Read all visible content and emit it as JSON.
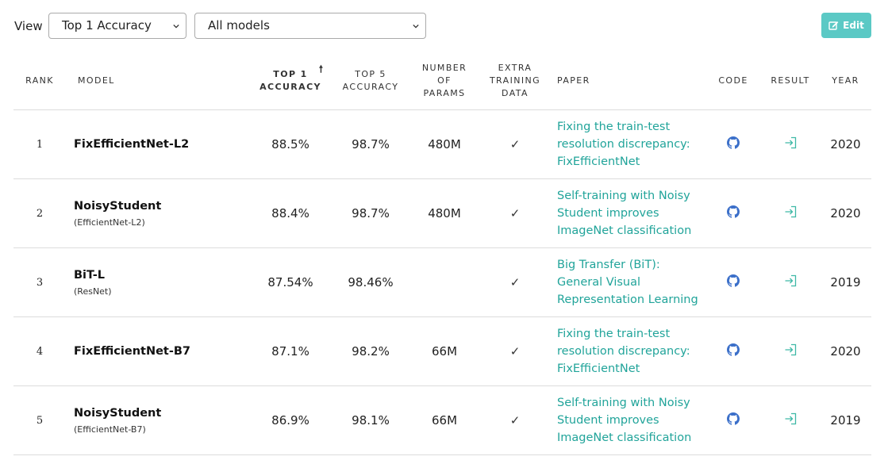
{
  "toolbar": {
    "view_label": "View",
    "metric_select": "Top 1 Accuracy",
    "models_select": "All models",
    "edit_label": "Edit",
    "accent": "#5bc9c5"
  },
  "columns": {
    "rank": "Rank",
    "model": "Model",
    "top1": "Top 1 Accuracy",
    "top5": "Top 5 Accuracy",
    "params": "Number of params",
    "extra": "Extra Training Data",
    "paper": "Paper",
    "code": "Code",
    "result": "Result",
    "year": "Year"
  },
  "rows": [
    {
      "rank": "1",
      "model": "FixEfficientNet-L2",
      "sub": "",
      "top1": "88.5%",
      "top5": "98.7%",
      "params": "480M",
      "extra": "✓",
      "paper": "Fixing the train-test resolution discrepancy: FixEfficientNet",
      "year": "2020"
    },
    {
      "rank": "2",
      "model": "NoisyStudent",
      "sub": "(EfficientNet-L2)",
      "top1": "88.4%",
      "top5": "98.7%",
      "params": "480M",
      "extra": "✓",
      "paper": "Self-training with Noisy Student improves ImageNet classification",
      "year": "2020"
    },
    {
      "rank": "3",
      "model": "BiT-L",
      "sub": "(ResNet)",
      "top1": "87.54%",
      "top5": "98.46%",
      "params": "",
      "extra": "✓",
      "paper": "Big Transfer (BiT): General Visual Representation Learning",
      "year": "2019"
    },
    {
      "rank": "4",
      "model": "FixEfficientNet-B7",
      "sub": "",
      "top1": "87.1%",
      "top5": "98.2%",
      "params": "66M",
      "extra": "✓",
      "paper": "Fixing the train-test resolution discrepancy: FixEfficientNet",
      "year": "2020"
    },
    {
      "rank": "5",
      "model": "NoisyStudent",
      "sub": "(EfficientNet-B7)",
      "top1": "86.9%",
      "top5": "98.1%",
      "params": "66M",
      "extra": "✓",
      "paper": "Self-training with Noisy Student improves ImageNet classification",
      "year": "2019"
    }
  ],
  "icons": {
    "code": "github-icon",
    "result": "login-arrow-icon",
    "sort": "sort-up-arrow-icon",
    "edit": "edit-icon"
  },
  "colors": {
    "link": "#21a49a",
    "github": "#3b6fc9",
    "result_icon": "#3fb9a6"
  }
}
